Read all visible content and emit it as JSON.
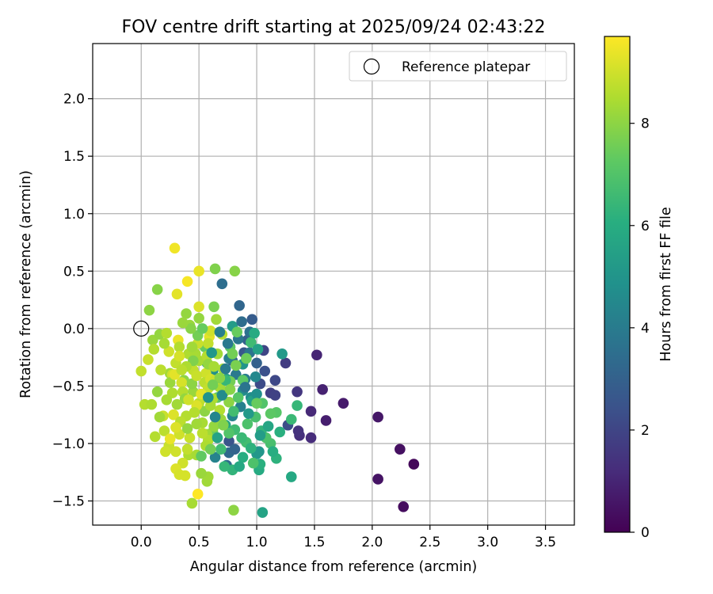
{
  "chart_data": {
    "type": "scatter",
    "title": "FOV centre drift starting at 2025/09/24 02:43:22",
    "xlabel": "Angular distance from reference (arcmin)",
    "ylabel": "Rotation from reference (arcmin)",
    "xlim": [
      -0.42,
      3.75
    ],
    "ylim": [
      -1.71,
      2.48
    ],
    "xticks": [
      0.0,
      0.5,
      1.0,
      1.5,
      2.0,
      2.5,
      3.0,
      3.5
    ],
    "xtick_labels": [
      "0.0",
      "0.5",
      "1.0",
      "1.5",
      "2.0",
      "2.5",
      "3.0",
      "3.5"
    ],
    "yticks": [
      -1.5,
      -1.0,
      -0.5,
      0.0,
      0.5,
      1.0,
      1.5,
      2.0
    ],
    "ytick_labels": [
      "−1.5",
      "−1.0",
      "−0.5",
      "0.0",
      "0.5",
      "1.0",
      "1.5",
      "2.0"
    ],
    "grid": true,
    "legend": {
      "location": "top-right",
      "entries": [
        "Reference platepar"
      ]
    },
    "reference_point": {
      "label": "Reference platepar",
      "x": 0.0,
      "y": 0.0
    },
    "colorbar": {
      "label": "Hours from first FF file",
      "range": [
        0,
        9.7
      ],
      "ticks": [
        0,
        2,
        4,
        6,
        8
      ],
      "tick_labels": [
        "0",
        "2",
        "4",
        "6",
        "8"
      ],
      "colormap": "viridis"
    },
    "points": [
      [
        2.36,
        -1.18,
        0.2
      ],
      [
        2.27,
        -1.55,
        0.3
      ],
      [
        2.24,
        -1.05,
        0.4
      ],
      [
        2.05,
        -1.31,
        0.5
      ],
      [
        2.05,
        -0.77,
        0.6
      ],
      [
        1.75,
        -0.65,
        0.7
      ],
      [
        1.6,
        -0.8,
        0.8
      ],
      [
        1.57,
        -0.53,
        0.9
      ],
      [
        1.52,
        -0.23,
        1.0
      ],
      [
        1.47,
        -0.72,
        1.1
      ],
      [
        1.47,
        -0.95,
        1.2
      ],
      [
        1.37,
        -0.93,
        1.3
      ],
      [
        1.36,
        -0.89,
        1.4
      ],
      [
        1.35,
        -0.55,
        1.5
      ],
      [
        1.25,
        -0.3,
        1.7
      ],
      [
        1.12,
        -0.56,
        1.8
      ],
      [
        1.16,
        -0.58,
        1.9
      ],
      [
        1.06,
        -0.19,
        2.0
      ],
      [
        1.16,
        -0.45,
        2.1
      ],
      [
        1.03,
        -0.48,
        2.2
      ],
      [
        1.27,
        -0.84,
        2.3
      ],
      [
        1.07,
        -0.37,
        2.4
      ],
      [
        0.76,
        -0.98,
        2.5
      ],
      [
        0.89,
        -0.21,
        2.6
      ],
      [
        0.96,
        0.08,
        2.8
      ],
      [
        0.92,
        -0.1,
        2.9
      ],
      [
        1.0,
        -0.3,
        3.0
      ],
      [
        0.79,
        -0.28,
        3.1
      ],
      [
        0.85,
        0.2,
        3.2
      ],
      [
        0.76,
        -1.08,
        3.3
      ],
      [
        0.74,
        -1.19,
        3.4
      ],
      [
        0.7,
        0.39,
        3.5
      ],
      [
        0.94,
        -0.03,
        3.6
      ],
      [
        0.94,
        -0.21,
        3.7
      ],
      [
        0.84,
        -0.09,
        3.8
      ],
      [
        0.82,
        -0.4,
        3.9
      ],
      [
        0.9,
        -0.44,
        4.0
      ],
      [
        0.76,
        -0.26,
        4.1
      ],
      [
        0.86,
        -0.68,
        4.2
      ],
      [
        0.64,
        -1.12,
        4.3
      ],
      [
        0.79,
        -0.76,
        4.4
      ],
      [
        0.99,
        -0.42,
        4.5
      ],
      [
        0.88,
        -0.54,
        4.6
      ],
      [
        0.95,
        -0.6,
        4.7
      ],
      [
        0.62,
        -0.37,
        4.8
      ],
      [
        0.57,
        -0.3,
        4.9
      ],
      [
        1.02,
        -1.07,
        5.0
      ],
      [
        1.0,
        -1.09,
        5.1
      ],
      [
        1.22,
        -0.22,
        5.2
      ],
      [
        0.79,
        0.02,
        5.3
      ],
      [
        0.74,
        -0.44,
        5.4
      ],
      [
        0.96,
        -0.63,
        5.5
      ],
      [
        1.05,
        -1.6,
        5.6
      ],
      [
        0.73,
        -0.84,
        5.7
      ],
      [
        1.3,
        -1.29,
        5.8
      ],
      [
        1.02,
        -1.23,
        5.9
      ],
      [
        0.88,
        -1.12,
        6.0
      ],
      [
        1.03,
        -1.18,
        6.1
      ],
      [
        1.17,
        -1.13,
        6.2
      ],
      [
        0.79,
        -1.23,
        6.3
      ],
      [
        1.35,
        -0.67,
        6.4
      ],
      [
        1.3,
        -0.79,
        6.5
      ],
      [
        0.81,
        -0.88,
        6.6
      ],
      [
        0.91,
        -0.99,
        6.7
      ],
      [
        1.12,
        -1.0,
        6.8
      ],
      [
        1.08,
        -0.95,
        6.9
      ],
      [
        1.05,
        -0.65,
        7.0
      ],
      [
        1.17,
        -0.73,
        7.1
      ],
      [
        0.77,
        -0.16,
        7.2
      ],
      [
        0.66,
        -0.6,
        7.3
      ],
      [
        0.55,
        -0.16,
        7.4
      ],
      [
        0.62,
        -0.9,
        7.5
      ],
      [
        0.77,
        -0.46,
        7.6
      ],
      [
        0.63,
        0.19,
        7.7
      ],
      [
        0.64,
        0.52,
        7.8
      ],
      [
        0.81,
        0.5,
        7.9
      ],
      [
        0.37,
        -0.45,
        8.0
      ],
      [
        0.5,
        0.09,
        8.1
      ],
      [
        0.42,
        0.03,
        8.2
      ],
      [
        0.57,
        -0.92,
        8.3
      ],
      [
        0.68,
        -0.51,
        8.4
      ],
      [
        0.41,
        -1.1,
        8.5
      ],
      [
        0.58,
        -0.97,
        8.6
      ],
      [
        0.5,
        -0.65,
        8.7
      ],
      [
        0.55,
        -0.6,
        8.8
      ],
      [
        0.19,
        -0.76,
        8.9
      ],
      [
        0.3,
        -1.07,
        9.0
      ],
      [
        0.35,
        -0.47,
        9.1
      ],
      [
        0.28,
        -0.75,
        9.2
      ],
      [
        0.59,
        -0.07,
        9.3
      ],
      [
        0.5,
        0.5,
        9.4
      ],
      [
        0.29,
        0.7,
        9.5
      ],
      [
        0.4,
        0.41,
        9.6
      ],
      [
        0.49,
        -1.44,
        9.7
      ],
      [
        0.8,
        -1.58,
        8.0
      ],
      [
        0.14,
        0.34,
        7.9
      ],
      [
        0.25,
        -0.39,
        8.3
      ],
      [
        0.03,
        -0.66,
        8.6
      ],
      [
        0.0,
        -0.37,
        8.8
      ],
      [
        0.24,
        -1.02,
        8.9
      ],
      [
        0.09,
        -0.66,
        8.5
      ],
      [
        0.33,
        -0.92,
        9.0
      ],
      [
        0.2,
        -0.89,
        8.7
      ],
      [
        0.44,
        -1.52,
        8.4
      ],
      [
        0.38,
        -1.28,
        9.1
      ],
      [
        0.58,
        -1.29,
        8.3
      ],
      [
        0.39,
        -0.76,
        8.6
      ],
      [
        0.56,
        -0.39,
        9.0
      ],
      [
        0.1,
        -0.1,
        8.2
      ],
      [
        0.16,
        -0.05,
        8.1
      ],
      [
        0.31,
        0.3,
        9.3
      ],
      [
        0.5,
        0.19,
        9.2
      ],
      [
        0.22,
        -0.04,
        8.6
      ],
      [
        0.07,
        0.16,
        8.0
      ],
      [
        0.32,
        -0.1,
        9.4
      ],
      [
        0.45,
        -0.36,
        8.8
      ],
      [
        0.27,
        -0.56,
        8.5
      ],
      [
        0.16,
        -0.77,
        8.3
      ],
      [
        0.12,
        -0.94,
        8.6
      ],
      [
        0.42,
        -0.95,
        8.9
      ],
      [
        0.63,
        -0.85,
        8.1
      ],
      [
        0.68,
        -0.71,
        8.6
      ],
      [
        0.71,
        -0.35,
        8.4
      ],
      [
        0.69,
        -0.79,
        8.2
      ],
      [
        0.55,
        -0.47,
        8.7
      ],
      [
        0.49,
        -0.13,
        8.9
      ],
      [
        0.41,
        -0.22,
        8.5
      ],
      [
        0.36,
        -0.55,
        8.6
      ],
      [
        0.3,
        -0.3,
        8.8
      ],
      [
        0.24,
        -0.2,
        9.0
      ],
      [
        0.17,
        -0.36,
        8.7
      ],
      [
        0.5,
        -0.28,
        8.4
      ],
      [
        0.45,
        -0.55,
        8.2
      ],
      [
        0.55,
        -0.72,
        8.0
      ],
      [
        0.58,
        -0.52,
        8.8
      ],
      [
        0.62,
        -0.61,
        8.5
      ],
      [
        0.66,
        -0.22,
        8.3
      ],
      [
        0.6,
        -0.44,
        9.1
      ],
      [
        0.53,
        -0.82,
        8.4
      ],
      [
        0.38,
        -0.61,
        8.1
      ],
      [
        0.34,
        -0.81,
        8.7
      ],
      [
        0.48,
        -0.67,
        9.2
      ],
      [
        0.44,
        -0.48,
        8.0
      ],
      [
        0.31,
        -0.66,
        8.3
      ],
      [
        0.27,
        -0.4,
        9.0
      ],
      [
        0.57,
        -0.24,
        8.6
      ],
      [
        0.64,
        -0.45,
        8.9
      ],
      [
        0.6,
        -0.02,
        9.0
      ],
      [
        0.52,
        -0.57,
        9.3
      ],
      [
        0.47,
        -0.22,
        8.4
      ],
      [
        0.4,
        -0.87,
        8.1
      ],
      [
        0.33,
        -0.16,
        8.6
      ],
      [
        0.25,
        -0.47,
        8.2
      ],
      [
        0.58,
        -0.13,
        8.8
      ],
      [
        0.72,
        -0.55,
        8.3
      ],
      [
        0.76,
        -0.64,
        8.0
      ],
      [
        0.7,
        -0.05,
        8.6
      ],
      [
        0.65,
        0.08,
        8.3
      ],
      [
        0.39,
        0.13,
        8.1
      ],
      [
        0.36,
        -1.17,
        9.0
      ],
      [
        0.48,
        -1.1,
        8.4
      ],
      [
        0.52,
        -1.26,
        8.2
      ],
      [
        0.57,
        -1.33,
        8.3
      ],
      [
        0.3,
        -1.22,
        9.2
      ],
      [
        0.25,
        -0.96,
        9.4
      ],
      [
        0.4,
        -1.05,
        8.8
      ],
      [
        0.56,
        -1.02,
        8.5
      ],
      [
        0.33,
        -1.27,
        9.1
      ],
      [
        0.21,
        -1.07,
        9.0
      ],
      [
        0.6,
        -0.67,
        8.4
      ],
      [
        0.79,
        -0.22,
        7.6
      ],
      [
        0.83,
        -0.03,
        7.4
      ],
      [
        0.88,
        -0.45,
        7.2
      ],
      [
        0.84,
        -0.6,
        7.1
      ],
      [
        0.92,
        -0.83,
        6.9
      ],
      [
        0.95,
        -0.12,
        6.6
      ],
      [
        0.73,
        -0.45,
        6.4
      ],
      [
        0.8,
        -0.72,
        6.7
      ],
      [
        0.87,
        -0.95,
        6.5
      ],
      [
        0.76,
        -0.91,
        7.0
      ],
      [
        0.99,
        -0.77,
        6.8
      ],
      [
        1.04,
        -0.89,
        6.3
      ],
      [
        0.98,
        -0.04,
        5.9
      ],
      [
        1.01,
        -0.18,
        5.5
      ],
      [
        0.88,
        -0.31,
        5.0
      ],
      [
        0.93,
        -0.74,
        5.2
      ],
      [
        0.7,
        -0.58,
        4.6
      ],
      [
        0.64,
        -0.77,
        4.4
      ],
      [
        0.75,
        -0.13,
        3.9
      ],
      [
        0.68,
        -0.03,
        4.2
      ],
      [
        0.87,
        0.06,
        3.4
      ],
      [
        0.73,
        -0.35,
        4.0
      ],
      [
        0.9,
        -0.51,
        3.7
      ],
      [
        1.0,
        -0.57,
        4.8
      ],
      [
        0.81,
        -1.05,
        3.1
      ],
      [
        0.66,
        -0.95,
        5.6
      ],
      [
        0.58,
        -0.6,
        4.9
      ],
      [
        0.61,
        -0.21,
        5.1
      ],
      [
        1.03,
        -0.93,
        5.3
      ],
      [
        1.1,
        -0.85,
        5.7
      ],
      [
        1.2,
        -0.9,
        6.1
      ],
      [
        1.14,
        -1.07,
        6.0
      ],
      [
        0.95,
        -1.04,
        6.2
      ],
      [
        0.85,
        -1.2,
        5.8
      ],
      [
        0.72,
        -1.2,
        6.4
      ],
      [
        0.69,
        -1.05,
        6.6
      ],
      [
        0.97,
        -1.17,
        6.9
      ],
      [
        1.12,
        -0.74,
        7.2
      ],
      [
        1.0,
        -0.65,
        7.4
      ],
      [
        0.91,
        -0.26,
        7.5
      ],
      [
        0.82,
        -0.32,
        7.7
      ],
      [
        0.77,
        -0.53,
        7.9
      ],
      [
        0.71,
        -0.84,
        7.8
      ],
      [
        0.6,
        -1.05,
        7.6
      ],
      [
        0.52,
        -1.11,
        7.3
      ],
      [
        0.45,
        -0.28,
        7.8
      ],
      [
        0.49,
        -0.06,
        7.6
      ],
      [
        0.53,
        0.0,
        7.4
      ],
      [
        0.43,
        0.0,
        7.9
      ],
      [
        0.36,
        0.05,
        8.2
      ],
      [
        0.2,
        -0.13,
        8.4
      ],
      [
        0.11,
        -0.18,
        8.6
      ],
      [
        0.06,
        -0.27,
        8.9
      ],
      [
        0.29,
        -0.4,
        9.3
      ],
      [
        0.33,
        -0.24,
        9.1
      ],
      [
        0.39,
        -0.33,
        8.5
      ],
      [
        0.3,
        -0.86,
        9.2
      ],
      [
        0.22,
        -0.62,
        8.4
      ],
      [
        0.14,
        -0.55,
        8.1
      ],
      [
        0.46,
        -0.73,
        8.6
      ],
      [
        0.41,
        -0.62,
        9.0
      ],
      [
        0.48,
        -0.83,
        8.3
      ],
      [
        0.53,
        -0.91,
        8.7
      ],
      [
        0.44,
        -0.16,
        8.3
      ],
      [
        0.48,
        -0.41,
        8.9
      ],
      [
        0.58,
        -0.31,
        8.1
      ],
      [
        0.63,
        -0.33,
        8.4
      ],
      [
        0.68,
        -0.43,
        7.9
      ],
      [
        0.62,
        -0.49,
        7.6
      ],
      [
        0.35,
        -0.36,
        8.7
      ]
    ]
  }
}
